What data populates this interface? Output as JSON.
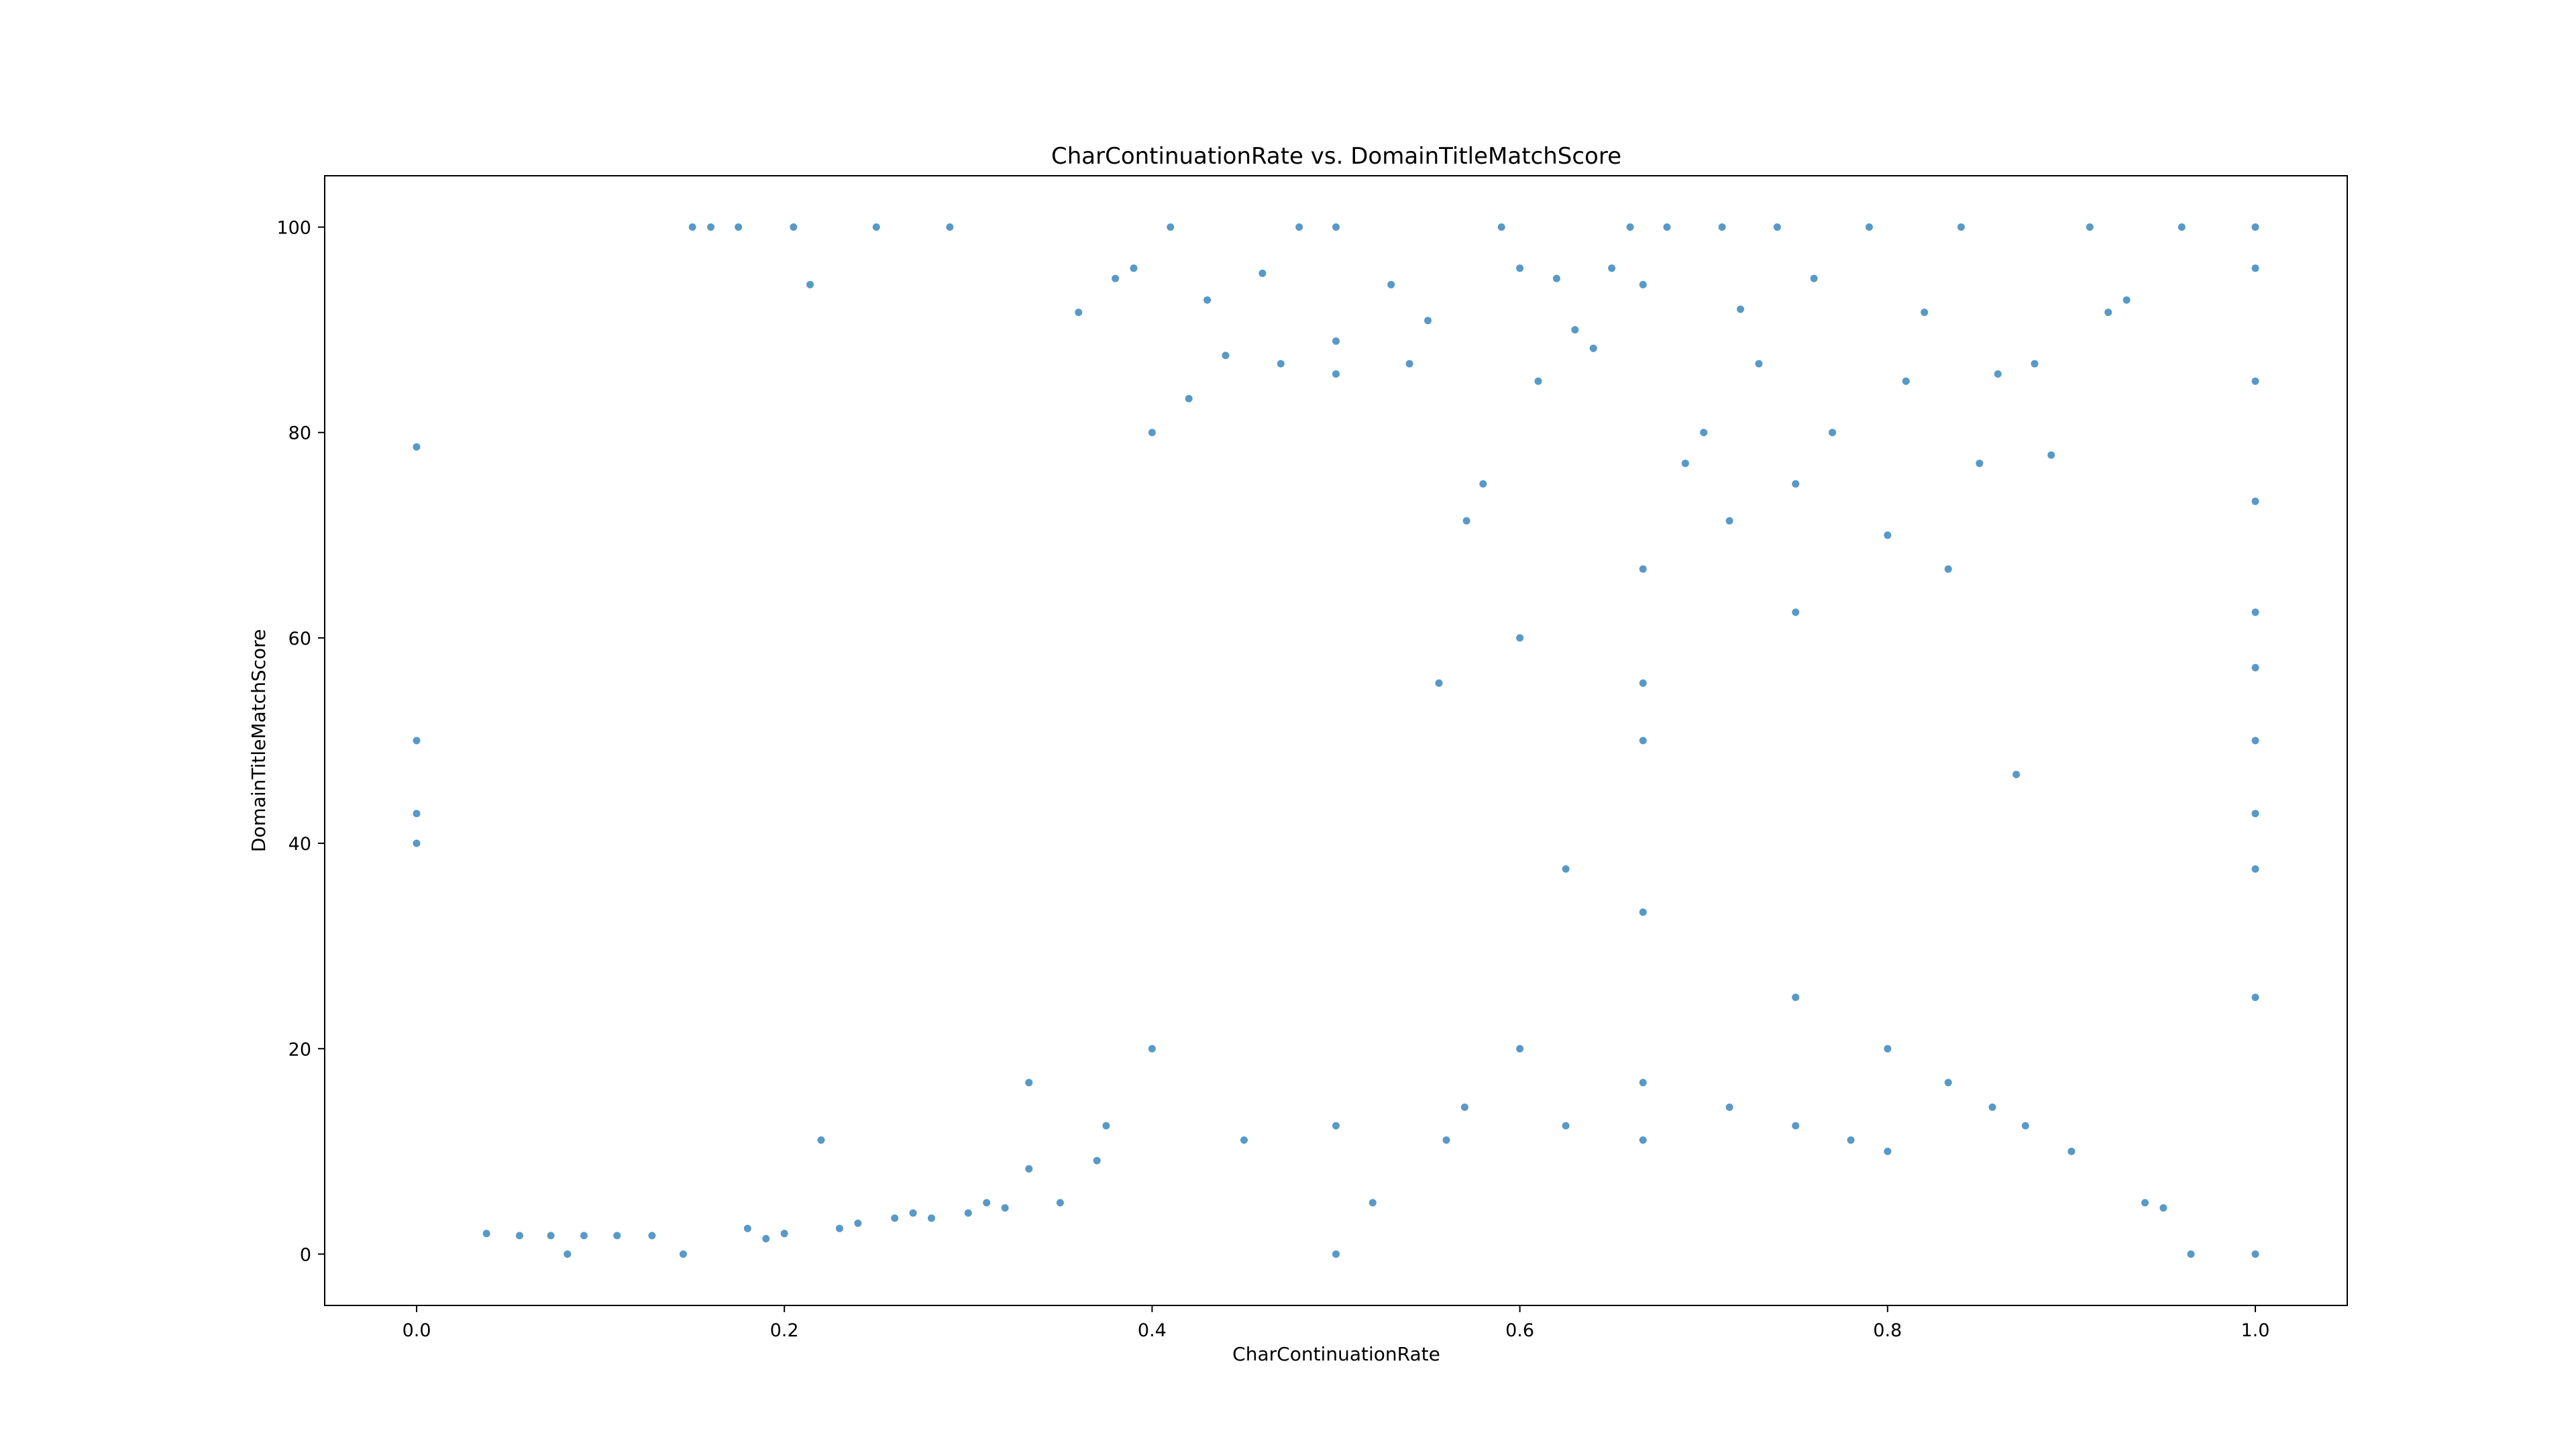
{
  "chart_data": {
    "type": "scatter",
    "title": "CharContinuationRate vs. DomainTitleMatchScore",
    "xlabel": "CharContinuationRate",
    "ylabel": "DomainTitleMatchScore",
    "xlim": [
      -0.05,
      1.05
    ],
    "ylim": [
      -5,
      105
    ],
    "xticks": [
      0.0,
      0.2,
      0.4,
      0.6,
      0.8,
      1.0
    ],
    "xtick_labels": [
      "0.0",
      "0.2",
      "0.4",
      "0.6",
      "0.8",
      "1.0"
    ],
    "yticks": [
      0,
      20,
      40,
      60,
      80,
      100
    ],
    "ytick_labels": [
      "0",
      "20",
      "40",
      "60",
      "80",
      "100"
    ],
    "grid": false,
    "legend": "none",
    "marker_color": "#1f77b4",
    "series": [
      {
        "x": [
          0.0,
          0.0,
          0.0,
          0.0,
          0.038,
          0.056,
          0.073,
          0.082,
          0.091,
          0.109,
          0.128,
          0.145,
          0.15,
          0.16,
          0.175,
          0.18,
          0.19,
          0.2,
          0.205,
          0.214,
          0.22,
          0.23,
          0.24,
          0.25,
          0.26,
          0.27,
          0.28,
          0.29,
          0.3,
          0.31,
          0.32,
          0.333,
          0.333,
          0.35,
          0.36,
          0.37,
          0.375,
          0.38,
          0.39,
          0.4,
          0.4,
          0.41,
          0.42,
          0.43,
          0.44,
          0.45,
          0.46,
          0.47,
          0.48,
          0.5,
          0.5,
          0.5,
          0.5,
          0.5,
          0.52,
          0.53,
          0.54,
          0.55,
          0.556,
          0.56,
          0.57,
          0.571,
          0.58,
          0.59,
          0.6,
          0.6,
          0.6,
          0.61,
          0.62,
          0.625,
          0.625,
          0.63,
          0.64,
          0.65,
          0.66,
          0.667,
          0.667,
          0.667,
          0.667,
          0.667,
          0.667,
          0.667,
          0.68,
          0.69,
          0.7,
          0.71,
          0.714,
          0.714,
          0.72,
          0.73,
          0.74,
          0.75,
          0.75,
          0.75,
          0.75,
          0.76,
          0.77,
          0.78,
          0.79,
          0.8,
          0.8,
          0.8,
          0.81,
          0.82,
          0.833,
          0.833,
          0.84,
          0.85,
          0.857,
          0.86,
          0.87,
          0.875,
          0.88,
          0.889,
          0.9,
          0.91,
          0.92,
          0.93,
          0.94,
          0.95,
          0.96,
          0.965,
          1.0,
          1.0,
          1.0,
          1.0,
          1.0,
          1.0,
          1.0,
          1.0,
          1.0,
          1.0,
          1.0
        ],
        "y": [
          78.6,
          50.0,
          42.9,
          40.0,
          2.0,
          1.8,
          1.8,
          0.0,
          1.8,
          1.8,
          1.8,
          0.0,
          100.0,
          100.0,
          100.0,
          2.5,
          1.5,
          2.0,
          100.0,
          94.4,
          11.1,
          2.5,
          3.0,
          100.0,
          3.5,
          4.0,
          3.5,
          100.0,
          4.0,
          5.0,
          4.5,
          16.7,
          8.3,
          5.0,
          91.7,
          9.1,
          12.5,
          95.0,
          96.0,
          20.0,
          80.0,
          100.0,
          83.3,
          92.9,
          87.5,
          11.1,
          95.5,
          86.7,
          100.0,
          100.0,
          88.9,
          85.7,
          12.5,
          0.0,
          5.0,
          94.4,
          86.7,
          90.9,
          55.6,
          11.1,
          14.3,
          71.4,
          75.0,
          100.0,
          60.0,
          20.0,
          96.0,
          85.0,
          95.0,
          37.5,
          12.5,
          90.0,
          88.2,
          96.0,
          100.0,
          66.7,
          55.6,
          50.0,
          33.3,
          16.7,
          11.1,
          94.4,
          100.0,
          77.0,
          80.0,
          100.0,
          71.4,
          14.3,
          92.0,
          86.7,
          100.0,
          75.0,
          62.5,
          25.0,
          12.5,
          95.0,
          80.0,
          11.1,
          100.0,
          70.0,
          20.0,
          10.0,
          85.0,
          91.7,
          66.7,
          16.7,
          100.0,
          77.0,
          14.3,
          85.7,
          46.7,
          12.5,
          86.7,
          77.8,
          10.0,
          100.0,
          91.7,
          92.9,
          5.0,
          4.5,
          100.0,
          0.0,
          100.0,
          96.0,
          85.0,
          73.3,
          62.5,
          57.1,
          50.0,
          42.9,
          37.5,
          25.0,
          0.0
        ]
      }
    ]
  }
}
